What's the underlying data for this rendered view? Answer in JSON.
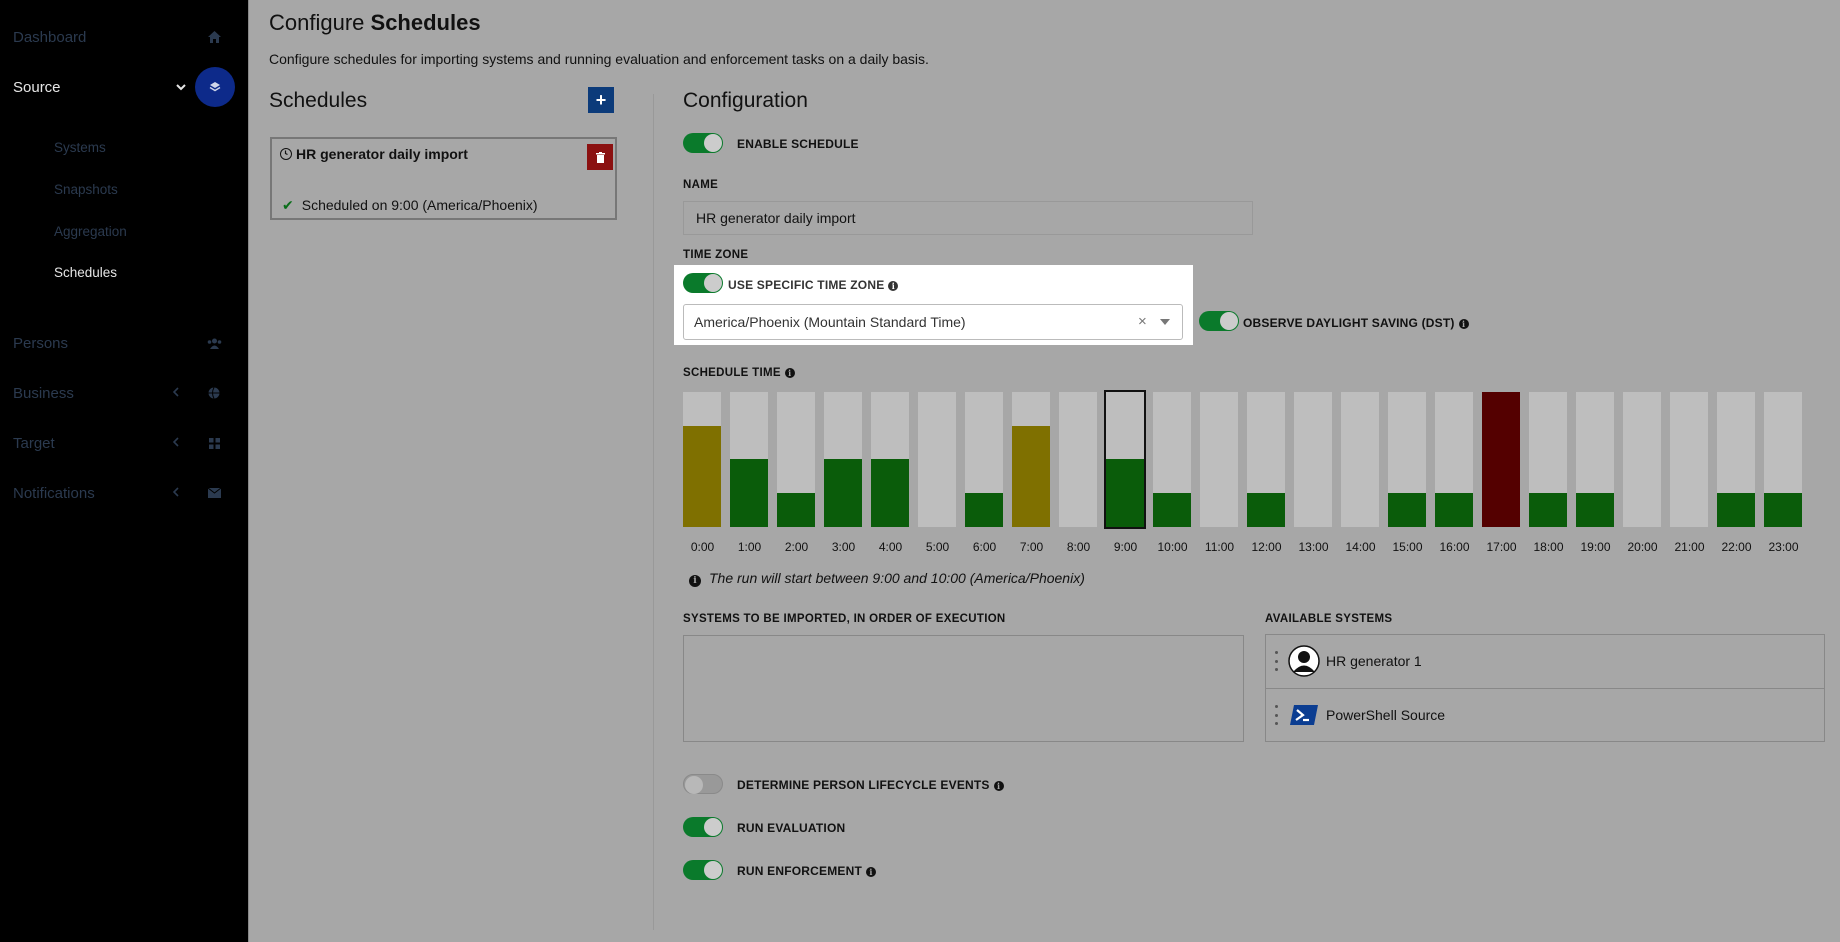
{
  "sidebar": {
    "items": [
      {
        "label": "Dashboard",
        "icon": "home-icon"
      },
      {
        "label": "Source",
        "icon": "layers-icon"
      },
      {
        "label": "Persons",
        "icon": "users-icon"
      },
      {
        "label": "Business",
        "icon": "globe-icon"
      },
      {
        "label": "Target",
        "icon": "grid-icon"
      },
      {
        "label": "Notifications",
        "icon": "envelope-icon"
      }
    ],
    "source_sub_items": [
      "Systems",
      "Snapshots",
      "Aggregation",
      "Schedules"
    ],
    "active_sub_item": "Schedules"
  },
  "page": {
    "title_prefix": "Configure",
    "title_bold": "Schedules",
    "description": "Configure schedules for importing systems and running evaluation and enforcement tasks on a daily basis."
  },
  "schedules": {
    "heading": "Schedules",
    "add_label": "+",
    "card": {
      "title": "HR generator daily import",
      "status": "Scheduled on 9:00 (America/Phoenix)"
    }
  },
  "config": {
    "heading": "Configuration",
    "enable_schedule": {
      "label": "ENABLE SCHEDULE",
      "on": true
    },
    "name_label": "NAME",
    "name_value": "HR generator daily import",
    "time_zone_label": "TIME ZONE",
    "use_specific_tz": {
      "label": "USE SPECIFIC TIME ZONE",
      "on": true
    },
    "tz_value": "America/Phoenix (Mountain Standard Time)",
    "tz_clear": "×",
    "dst": {
      "label": "OBSERVE DAYLIGHT SAVING (DST)",
      "on": true
    },
    "schedule_time_label": "SCHEDULE TIME",
    "run_note": "The run will start between 9:00 and 10:00 (America/Phoenix)",
    "systems_to_import_label": "SYSTEMS TO BE IMPORTED, IN ORDER OF EXECUTION",
    "available_systems_label": "AVAILABLE SYSTEMS",
    "available_systems": [
      {
        "name": "HR generator 1",
        "icon": "user-silhouette-icon"
      },
      {
        "name": "PowerShell Source",
        "icon": "powershell-icon"
      }
    ],
    "lifecycle": {
      "label": "DETERMINE PERSON LIFECYCLE EVENTS",
      "on": false
    },
    "run_evaluation": {
      "label": "RUN EVALUATION",
      "on": true
    },
    "run_enforcement": {
      "label": "RUN ENFORCEMENT",
      "on": true
    }
  },
  "chart_data": {
    "type": "bar",
    "categories": [
      "0:00",
      "1:00",
      "2:00",
      "3:00",
      "4:00",
      "5:00",
      "6:00",
      "7:00",
      "8:00",
      "9:00",
      "10:00",
      "11:00",
      "12:00",
      "13:00",
      "14:00",
      "15:00",
      "16:00",
      "17:00",
      "18:00",
      "19:00",
      "20:00",
      "21:00",
      "22:00",
      "23:00"
    ],
    "values": [
      0.75,
      0.5,
      0.25,
      0.5,
      0.5,
      0,
      0.25,
      0.75,
      0,
      0.5,
      0.25,
      0,
      0.25,
      0,
      0,
      0.25,
      0.25,
      1.0,
      0.25,
      0.25,
      0,
      0,
      0.25,
      0.25
    ],
    "levels": [
      "yellow",
      "green",
      "green",
      "green",
      "green",
      "none",
      "green",
      "yellow",
      "none",
      "green",
      "green",
      "none",
      "green",
      "none",
      "none",
      "green",
      "green",
      "red",
      "green",
      "green",
      "none",
      "none",
      "green",
      "green"
    ],
    "colors": {
      "green": "#0a5c0a",
      "yellow": "#7f7000",
      "red": "#540000",
      "empty": "#bebebe"
    },
    "selected": "9:00",
    "ylim": [
      0,
      1
    ]
  }
}
